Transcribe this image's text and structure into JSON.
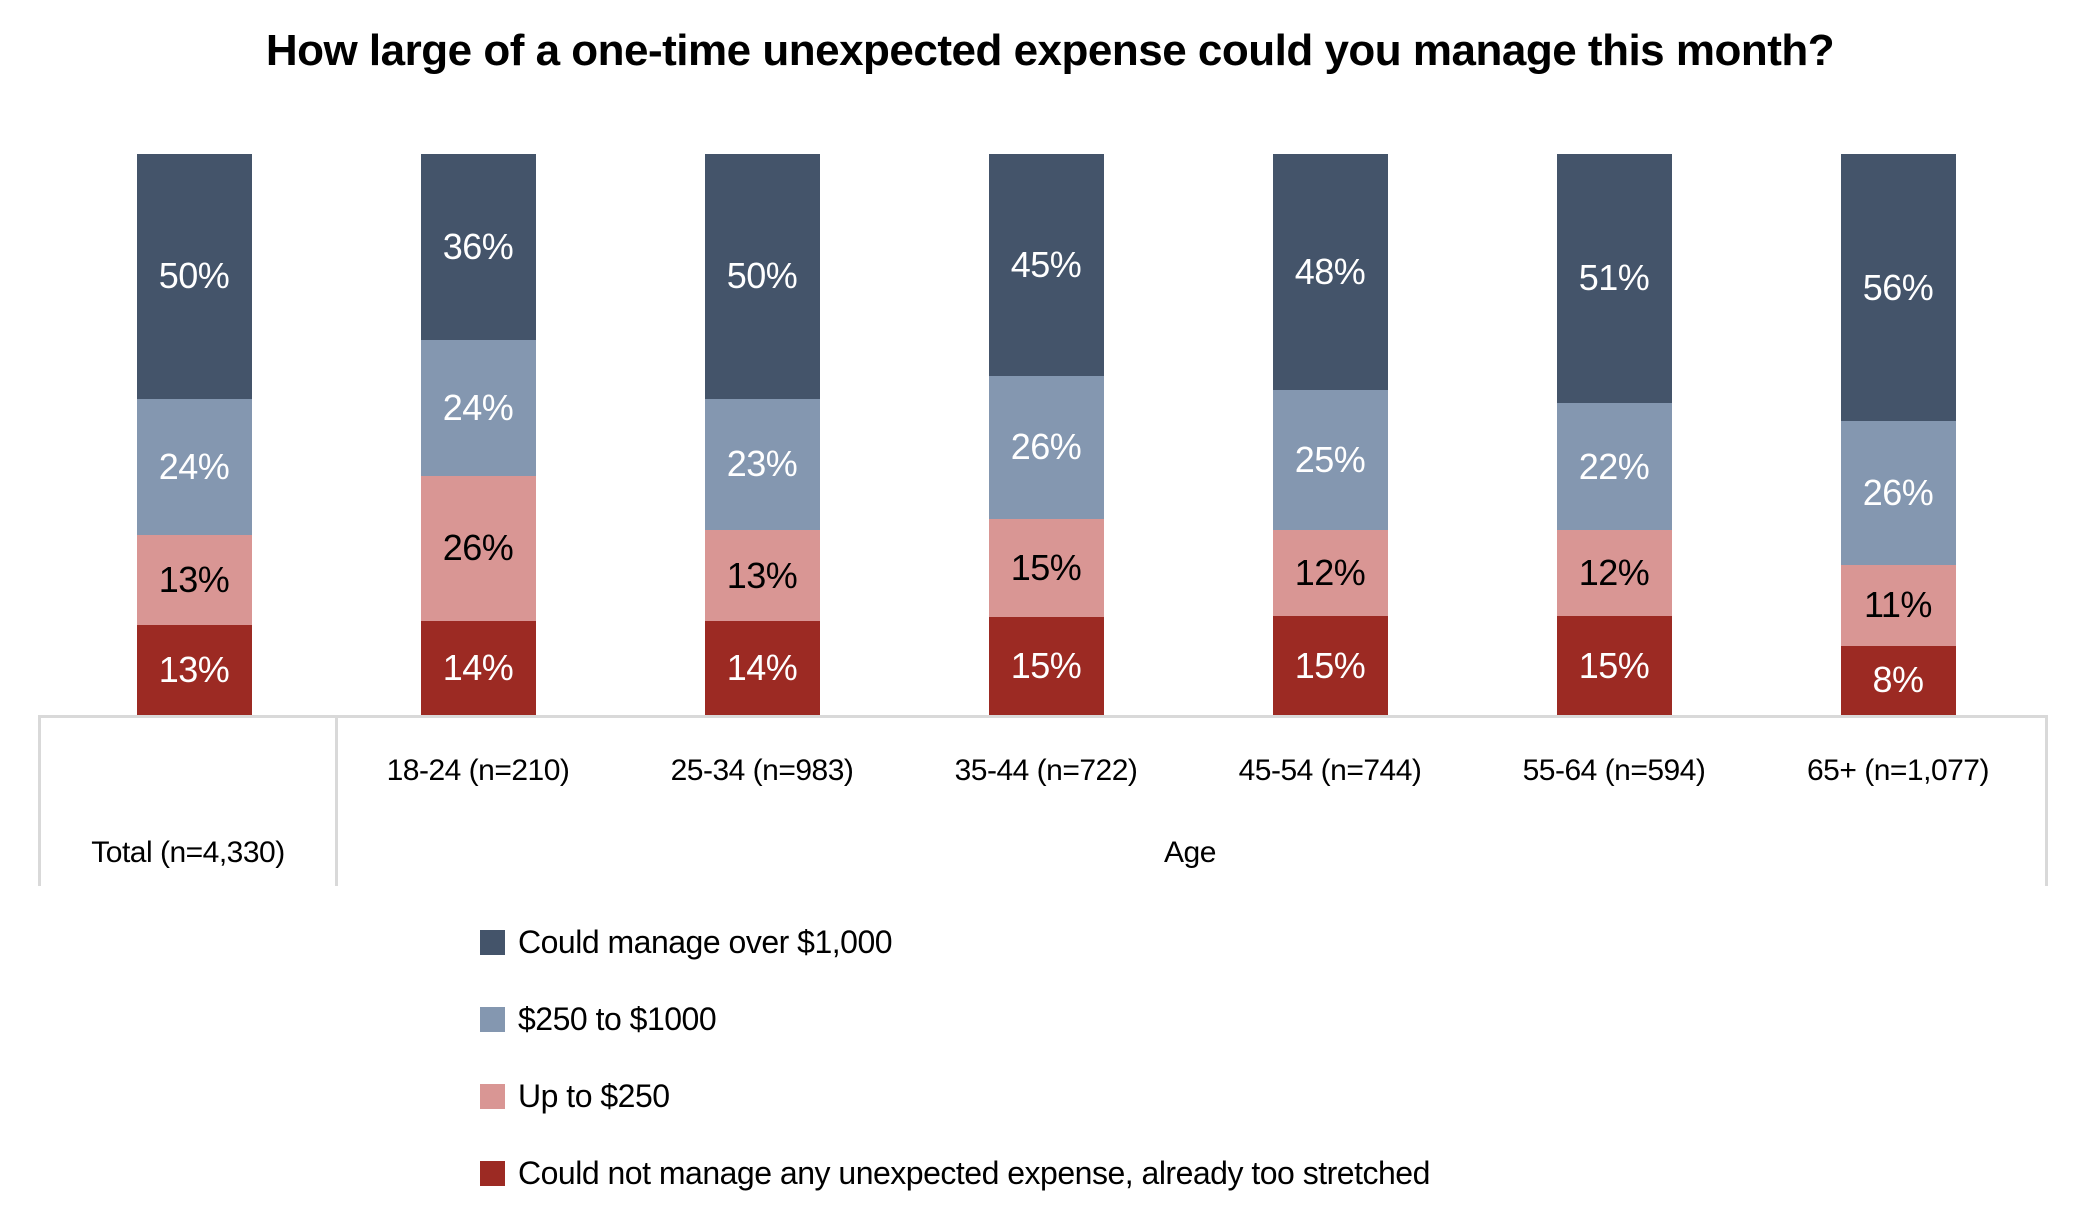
{
  "title": "How large of a one-time unexpected expense could you manage this month?",
  "axis": {
    "total_label": "Total (n=4,330)",
    "group_label": "Age"
  },
  "chart_data": {
    "type": "bar",
    "stacked": true,
    "orientation": "vertical",
    "value_suffix": "%",
    "ylim": [
      0,
      100
    ],
    "grid": false,
    "legend_position": "bottom-left",
    "title": "How large of a one-time unexpected expense could you manage this month?",
    "xlabel": "Age",
    "ylabel": "",
    "categories": [
      "Total (n=4,330)",
      "18-24 (n=210)",
      "25-34 (n=983)",
      "35-44 (n=722)",
      "45-54 (n=744)",
      "55-64 (n=594)",
      "65+ (n=1,077)"
    ],
    "series": [
      {
        "name": "Could manage over $1,000",
        "color": "#44546A",
        "label_color": "#FFFFFF",
        "values": [
          50,
          36,
          50,
          45,
          48,
          51,
          56
        ]
      },
      {
        "name": "$250 to $1000",
        "color": "#8497B0",
        "label_color": "#FFFFFF",
        "values": [
          24,
          24,
          23,
          26,
          25,
          22,
          26
        ]
      },
      {
        "name": "Up to $250",
        "color": "#D99694",
        "label_color": "#000000",
        "values": [
          13,
          26,
          13,
          15,
          12,
          12,
          11
        ]
      },
      {
        "name": "Could not manage any unexpected expense, already too stretched",
        "color": "#9C2A23",
        "label_color": "#FFFFFF",
        "values": [
          13,
          14,
          14,
          15,
          15,
          15,
          8
        ]
      }
    ]
  },
  "layout_colors": {
    "border_gray": "#D9D9D9"
  }
}
